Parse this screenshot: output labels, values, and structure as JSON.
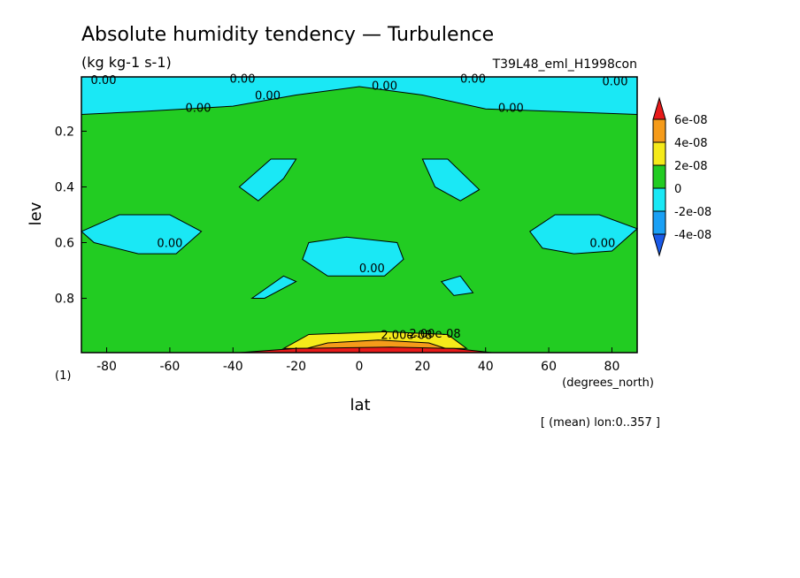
{
  "chart_data": {
    "type": "heatmap",
    "title": "Absolute humidity tendency — Turbulence",
    "units": "(kg kg-1 s-1)",
    "run_id": "T39L48_eml_H1998con",
    "xlabel": "lat",
    "x_units": "(degrees_north)",
    "ylabel": "lev",
    "y_units": "(1)",
    "xlim": [
      -88,
      88
    ],
    "ylim": [
      0.005,
      0.995
    ],
    "x_ticks": [
      -80,
      -60,
      -40,
      -20,
      0,
      20,
      40,
      60,
      80
    ],
    "y_ticks": [
      0.2,
      0.4,
      0.6,
      0.8
    ],
    "y_inverted": true,
    "note": "[ (mean) lon:0..357 ]",
    "colorbar": {
      "labels": [
        "6e-08",
        "4e-08",
        "2e-08",
        "0",
        "-2e-08",
        "-4e-08"
      ],
      "levels": [
        6e-08,
        4e-08,
        2e-08,
        0,
        -2e-08,
        -4e-08
      ],
      "colors": {
        "above_6e-08": "#e81a1a",
        "4e-08_to_6e-08": "#f59b1a",
        "2e-08_to_4e-08": "#f5ea1a",
        "0_to_2e-08": "#22cc22",
        "-2e-08_to_0": "#1ae8f5",
        "-4e-08_to_-2e-08": "#1aa0f5",
        "below_-4e-08": "#1a5ae8"
      }
    },
    "contour_labels": [
      "0.00",
      "0.00",
      "0.00",
      "0.00",
      "0.00",
      "0.00",
      "0.00",
      "0.00",
      "0.00",
      "0.00",
      "0.00",
      "0.00",
      "2.00e-08",
      "2.00e-08"
    ],
    "regions": [
      {
        "level": "-2e-08_to_0",
        "points": [
          [
            -88,
            0.005
          ],
          [
            88,
            0.005
          ],
          [
            88,
            0.14
          ],
          [
            40,
            0.12
          ],
          [
            20,
            0.07
          ],
          [
            0,
            0.04
          ],
          [
            -20,
            0.07
          ],
          [
            -40,
            0.11
          ],
          [
            -70,
            0.13
          ],
          [
            -88,
            0.14
          ]
        ]
      },
      {
        "level": "-2e-08_to_0",
        "points": [
          [
            -38,
            0.4
          ],
          [
            -28,
            0.3
          ],
          [
            -20,
            0.3
          ],
          [
            -24,
            0.37
          ],
          [
            -32,
            0.45
          ]
        ]
      },
      {
        "level": "-2e-08_to_0",
        "points": [
          [
            20,
            0.3
          ],
          [
            28,
            0.3
          ],
          [
            38,
            0.41
          ],
          [
            32,
            0.45
          ],
          [
            24,
            0.4
          ]
        ]
      },
      {
        "level": "-2e-08_to_0",
        "points": [
          [
            -88,
            0.56
          ],
          [
            -76,
            0.5
          ],
          [
            -60,
            0.5
          ],
          [
            -50,
            0.56
          ],
          [
            -58,
            0.64
          ],
          [
            -70,
            0.64
          ],
          [
            -84,
            0.6
          ]
        ]
      },
      {
        "level": "-2e-08_to_0",
        "points": [
          [
            54,
            0.56
          ],
          [
            62,
            0.5
          ],
          [
            76,
            0.5
          ],
          [
            88,
            0.55
          ],
          [
            80,
            0.63
          ],
          [
            68,
            0.64
          ],
          [
            58,
            0.62
          ]
        ]
      },
      {
        "level": "-2e-08_to_0",
        "points": [
          [
            -16,
            0.6
          ],
          [
            -4,
            0.58
          ],
          [
            12,
            0.6
          ],
          [
            14,
            0.66
          ],
          [
            8,
            0.72
          ],
          [
            -10,
            0.72
          ],
          [
            -18,
            0.66
          ]
        ]
      },
      {
        "level": "-2e-08_to_0",
        "points": [
          [
            -34,
            0.8
          ],
          [
            -24,
            0.72
          ],
          [
            -20,
            0.74
          ],
          [
            -30,
            0.8
          ]
        ]
      },
      {
        "level": "-2e-08_to_0",
        "points": [
          [
            26,
            0.74
          ],
          [
            32,
            0.72
          ],
          [
            36,
            0.78
          ],
          [
            30,
            0.79
          ]
        ]
      },
      {
        "level": "2e-08_to_4e-08",
        "points": [
          [
            -24,
            0.98
          ],
          [
            -16,
            0.93
          ],
          [
            8,
            0.92
          ],
          [
            28,
            0.93
          ],
          [
            34,
            0.98
          ]
        ]
      },
      {
        "level": "4e-08_to_6e-08",
        "points": [
          [
            -20,
            0.99
          ],
          [
            -10,
            0.96
          ],
          [
            6,
            0.95
          ],
          [
            22,
            0.96
          ],
          [
            30,
            0.99
          ]
        ]
      },
      {
        "level": "above_6e-08",
        "points": [
          [
            -38,
            0.995
          ],
          [
            -20,
            0.98
          ],
          [
            10,
            0.975
          ],
          [
            30,
            0.98
          ],
          [
            42,
            0.995
          ]
        ]
      }
    ]
  }
}
